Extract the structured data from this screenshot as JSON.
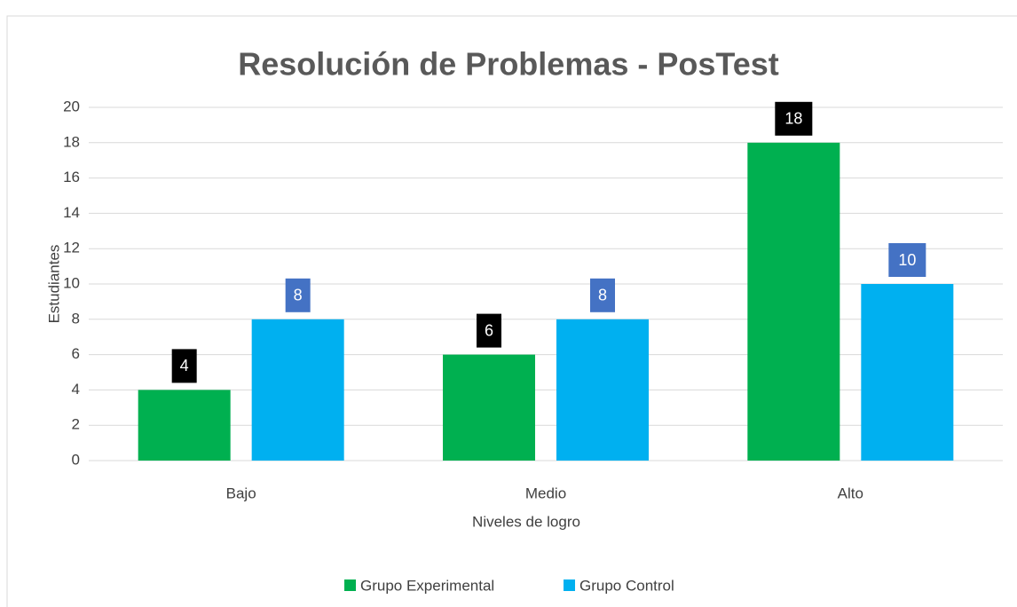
{
  "chart_data": {
    "type": "bar",
    "title": "Resolución de Problemas - PosTest",
    "x_label": "Niveles de logro",
    "y_label": "Estudiantes",
    "categories": [
      "Bajo",
      "Medio",
      "Alto"
    ],
    "series": [
      {
        "name": "Grupo Experimental",
        "color": "#00b050",
        "label_box_color": "#000000",
        "values": [
          4,
          6,
          18
        ]
      },
      {
        "name": "Grupo Control",
        "color": "#00b0f0",
        "label_box_color": "#4472c4",
        "values": [
          8,
          8,
          10
        ]
      }
    ],
    "ylim": [
      0,
      20
    ],
    "yticks": [
      0,
      2,
      4,
      6,
      8,
      10,
      12,
      14,
      16,
      18,
      20
    ],
    "grid": true,
    "legend": "bottom"
  }
}
